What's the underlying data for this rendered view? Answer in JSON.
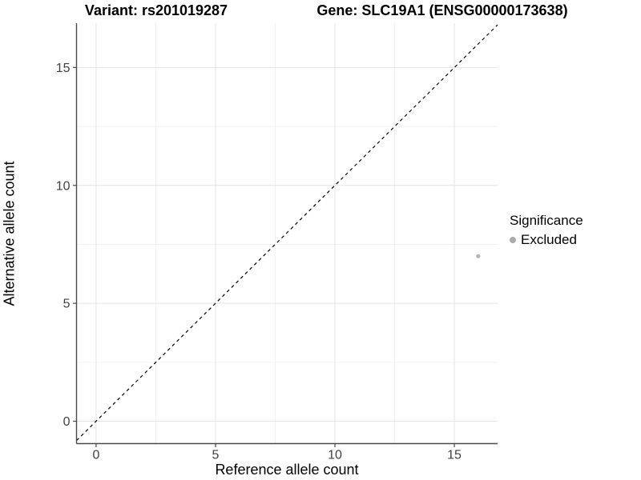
{
  "chart_data": {
    "type": "scatter",
    "title_left": "Variant: rs201019287",
    "title_right": "Gene: SLC19A1 (ENSG00000173638)",
    "xlabel": "Reference allele count",
    "ylabel": "Alternative allele count",
    "xlim": [
      -0.82,
      16.81
    ],
    "ylim": [
      -0.95,
      16.88
    ],
    "x_major_ticks": [
      0,
      5,
      10,
      15
    ],
    "y_major_ticks": [
      0,
      5,
      10,
      15
    ],
    "x_minor_ticks": [
      2.5,
      7.5,
      12.5
    ],
    "y_minor_ticks": [
      2.5,
      7.5,
      12.5
    ],
    "grid": true,
    "reference_line": {
      "kind": "identity",
      "equation": "y = x",
      "style": "dashed",
      "color": "#000000"
    },
    "series": [
      {
        "name": "Excluded",
        "color": "#b5b5b5",
        "points": [
          {
            "x": 16,
            "y": 7
          }
        ]
      }
    ],
    "legend": {
      "position": "right",
      "title": "Significance",
      "entries": [
        {
          "label": "Excluded",
          "color": "#ababab",
          "marker": "circle"
        }
      ]
    },
    "colors": {
      "background": "#ffffff",
      "grid_major": "#e4e4e4",
      "grid_minor": "#f1f1f1",
      "axis_line": "#4a4a4a",
      "tick_label": "#404040",
      "title_text": "#000000"
    }
  }
}
